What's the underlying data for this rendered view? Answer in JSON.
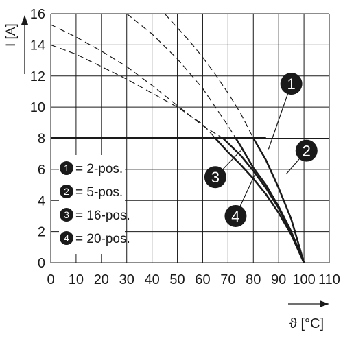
{
  "colors": {
    "background": "#ffffff",
    "grid": "#1a1a1a",
    "curve": "#1a1a1a",
    "marker": "#1a1a1a",
    "marker_text": "#ffffff"
  },
  "chart_data": {
    "type": "line",
    "title": "",
    "xlabel": "ϑ [°C]",
    "ylabel": "I [A]",
    "xlim": [
      0,
      110
    ],
    "ylim": [
      0,
      16
    ],
    "grid": true,
    "x_ticks": [
      0,
      10,
      20,
      30,
      40,
      50,
      60,
      70,
      80,
      90,
      100,
      110
    ],
    "y_ticks": [
      0,
      2,
      4,
      6,
      8,
      10,
      12,
      14,
      16
    ],
    "derating_limit": {
      "value": 8,
      "x_end": 85
    },
    "legend": {
      "placement": "left",
      "entries": [
        {
          "marker": "1",
          "label": "= 2-pos."
        },
        {
          "marker": "2",
          "label": "= 5-pos."
        },
        {
          "marker": "3",
          "label": "= 16-pos."
        },
        {
          "marker": "4",
          "label": "= 20-pos."
        }
      ]
    },
    "series": [
      {
        "marker": "1",
        "style": "solid-with-dashed-extension",
        "x": [
          45,
          50,
          55,
          60,
          65,
          70,
          75,
          80,
          85,
          90,
          95,
          100
        ],
        "y": [
          16,
          15.1,
          14.2,
          13.2,
          12.1,
          10.9,
          9.6,
          8.0,
          6.6,
          4.8,
          2.8,
          0
        ]
      },
      {
        "marker": "2",
        "style": "solid-with-dashed-extension",
        "x": [
          30,
          40,
          50,
          60,
          70,
          75,
          80,
          85,
          90,
          95,
          100
        ],
        "y": [
          16,
          14.7,
          13.1,
          11.2,
          8.8,
          7.5,
          6.1,
          5.0,
          3.6,
          2.0,
          0
        ]
      },
      {
        "marker": "3",
        "style": "solid-with-dashed-extension",
        "x": [
          0,
          10,
          20,
          30,
          40,
          50,
          60,
          68,
          75,
          80,
          85,
          90,
          95,
          100
        ],
        "y": [
          15.3,
          14.5,
          13.6,
          12.6,
          11.4,
          10.1,
          8.8,
          8.0,
          6.9,
          5.9,
          4.8,
          3.5,
          1.9,
          0
        ]
      },
      {
        "marker": "4",
        "style": "solid-with-dashed-extension",
        "x": [
          0,
          10,
          20,
          30,
          40,
          50,
          60,
          65,
          70,
          75,
          80,
          85,
          90,
          95,
          100
        ],
        "y": [
          14.0,
          13.4,
          12.6,
          11.8,
          10.9,
          10.0,
          8.9,
          8.0,
          7.1,
          6.3,
          5.4,
          4.4,
          3.2,
          1.8,
          0
        ]
      }
    ],
    "annotations": [
      {
        "marker": "1",
        "x": 95,
        "y": 11.5,
        "points_to": [
          86,
          7.3
        ]
      },
      {
        "marker": "2",
        "x": 101,
        "y": 7.2,
        "points_to": [
          93,
          5.7
        ]
      },
      {
        "marker": "3",
        "x": 65,
        "y": 5.5,
        "points_to": [
          75,
          7.2
        ]
      },
      {
        "marker": "4",
        "x": 73,
        "y": 3.0,
        "points_to": [
          81,
          5.8
        ]
      }
    ]
  }
}
